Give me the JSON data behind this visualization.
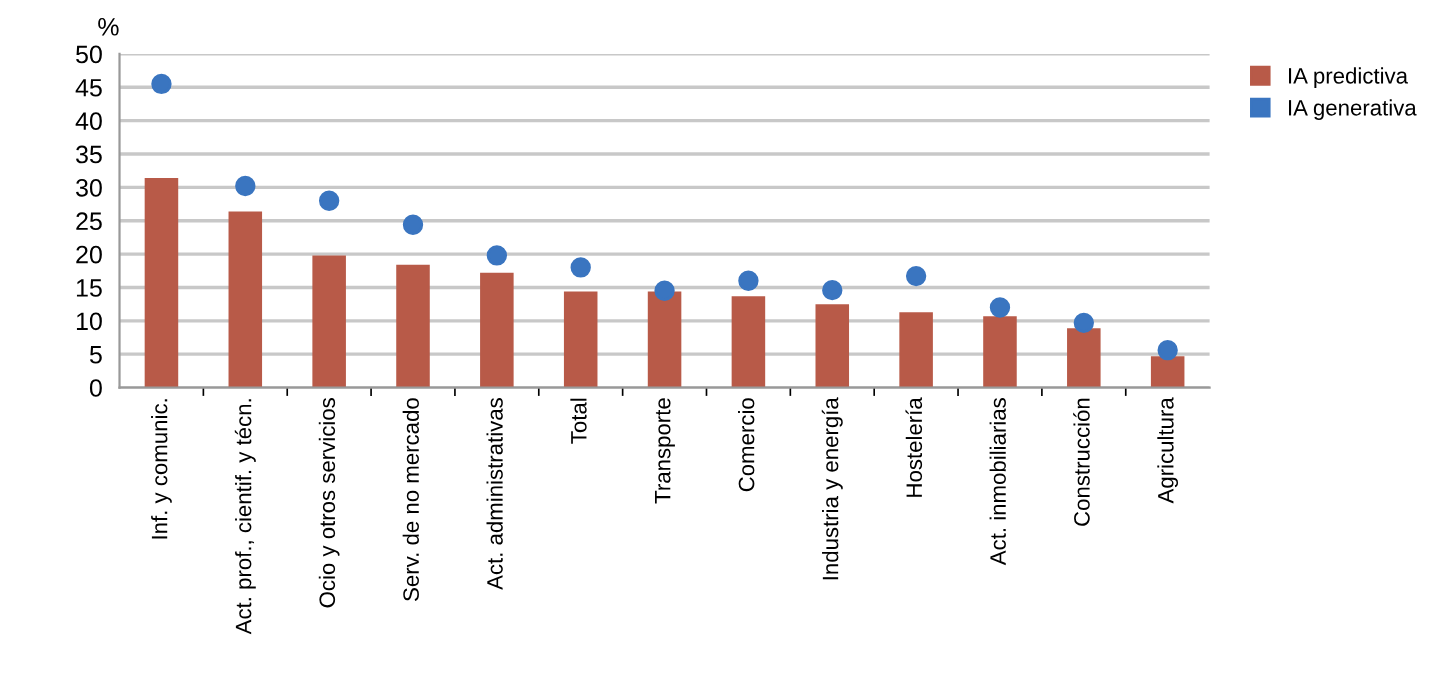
{
  "chart_data": {
    "type": "bar",
    "ylabel": "%",
    "categories": [
      "Inf. y comunic.",
      "Act. prof., cientif. y técn.",
      "Ocio y otros servicios",
      "Serv. de no mercado",
      "Act. administrativas",
      "Total",
      "Transporte",
      "Comercio",
      "Industria y energía",
      "Hostelería",
      "Act. inmobiliarias",
      "Construcción",
      "Agricultura"
    ],
    "series": [
      {
        "name": "IA predictiva",
        "type": "bar",
        "color": "#b85a48",
        "values": [
          31.4,
          26.4,
          19.8,
          18.4,
          17.2,
          14.4,
          14.4,
          13.7,
          12.5,
          11.3,
          10.7,
          8.9,
          4.7
        ]
      },
      {
        "name": "IA generativa",
        "type": "scatter",
        "color": "#3a75c0",
        "marker": "circle",
        "values": [
          45.5,
          30.2,
          28,
          24.4,
          19.8,
          18,
          14.5,
          16,
          14.6,
          16.7,
          12,
          9.7,
          5.6
        ]
      }
    ],
    "ylim": [
      0,
      50
    ],
    "yticks": [
      0,
      5,
      10,
      15,
      20,
      25,
      30,
      35,
      40,
      45,
      50
    ],
    "grid": "y",
    "legend": "top right"
  }
}
